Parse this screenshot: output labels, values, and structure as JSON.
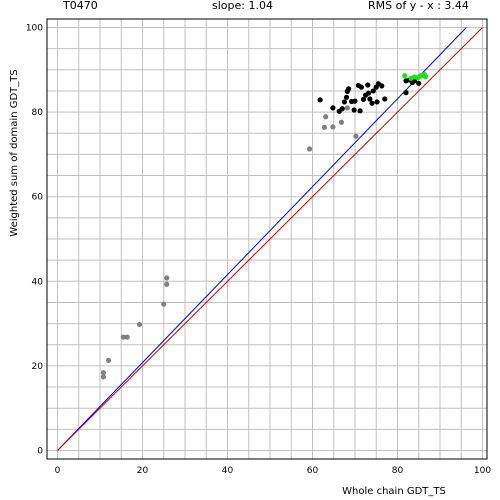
{
  "header": {
    "target": "T0470",
    "slope": "slope: 1.04",
    "rms": "RMS of  y - x : 3.44"
  },
  "colors": {
    "grid": "#c0c0c0",
    "frame": "#000000",
    "fit_line": "#0000cc",
    "diagonal": "#cc0000",
    "points_gray": "#808080",
    "points_black": "#000000",
    "points_green": "#22dd22"
  },
  "chart_data": {
    "type": "scatter",
    "xlabel": "Whole chain GDT_TS",
    "ylabel": "Weighted sum of domain GDT_TS",
    "xlim": [
      0,
      100
    ],
    "ylim": [
      0,
      100
    ],
    "xticks": [
      "0",
      "20",
      "40",
      "60",
      "80",
      "100"
    ],
    "yticks": [
      "0",
      "20",
      "40",
      "60",
      "80",
      "100"
    ],
    "grid": true,
    "lines": [
      {
        "role": "fit",
        "slope": 1.04,
        "x": [
          0,
          96.2
        ],
        "y": [
          0,
          100
        ]
      },
      {
        "role": "diagonal",
        "x": [
          0,
          100
        ],
        "y": [
          0,
          100
        ]
      }
    ],
    "series": [
      {
        "color_role": "gray",
        "points": [
          [
            10.8,
            18.4
          ],
          [
            10.8,
            17.4
          ],
          [
            12.0,
            21.3
          ],
          [
            15.5,
            26.8
          ],
          [
            16.4,
            26.8
          ],
          [
            19.3,
            29.8
          ],
          [
            25.0,
            34.6
          ],
          [
            25.7,
            39.3
          ],
          [
            25.7,
            40.8
          ],
          [
            59.3,
            71.3
          ],
          [
            62.8,
            76.4
          ],
          [
            63.1,
            78.9
          ],
          [
            64.8,
            76.5
          ],
          [
            66.8,
            77.6
          ],
          [
            68.2,
            81.0
          ],
          [
            70.2,
            74.3
          ]
        ]
      },
      {
        "color_role": "black",
        "points": [
          [
            61.8,
            82.9
          ],
          [
            64.8,
            81.0
          ],
          [
            66.3,
            80.2
          ],
          [
            67.0,
            80.8
          ],
          [
            67.5,
            82.4
          ],
          [
            68.0,
            83.5
          ],
          [
            68.2,
            84.9
          ],
          [
            68.5,
            85.5
          ],
          [
            69.2,
            82.5
          ],
          [
            69.8,
            80.5
          ],
          [
            70.0,
            82.6
          ],
          [
            70.8,
            86.3
          ],
          [
            71.2,
            80.3
          ],
          [
            71.5,
            85.9
          ],
          [
            72.0,
            83.0
          ],
          [
            72.5,
            84.0
          ],
          [
            73.0,
            86.4
          ],
          [
            73.2,
            84.5
          ],
          [
            73.5,
            83.1
          ],
          [
            74.0,
            82.1
          ],
          [
            74.3,
            85.0
          ],
          [
            75.0,
            85.9
          ],
          [
            75.2,
            82.4
          ],
          [
            75.5,
            86.7
          ],
          [
            76.3,
            86.2
          ],
          [
            77.0,
            83.1
          ],
          [
            82.0,
            87.4
          ],
          [
            82.0,
            84.6
          ],
          [
            82.8,
            87.6
          ],
          [
            83.5,
            87.0
          ],
          [
            84.0,
            87.4
          ],
          [
            85.0,
            86.8
          ]
        ]
      },
      {
        "color_role": "green",
        "points": [
          [
            81.7,
            88.6
          ],
          [
            83.2,
            88.0
          ],
          [
            84.0,
            88.3
          ],
          [
            84.8,
            88.1
          ],
          [
            85.3,
            88.5
          ],
          [
            85.8,
            88.7
          ],
          [
            86.3,
            88.9
          ],
          [
            86.6,
            88.4
          ]
        ]
      }
    ]
  }
}
